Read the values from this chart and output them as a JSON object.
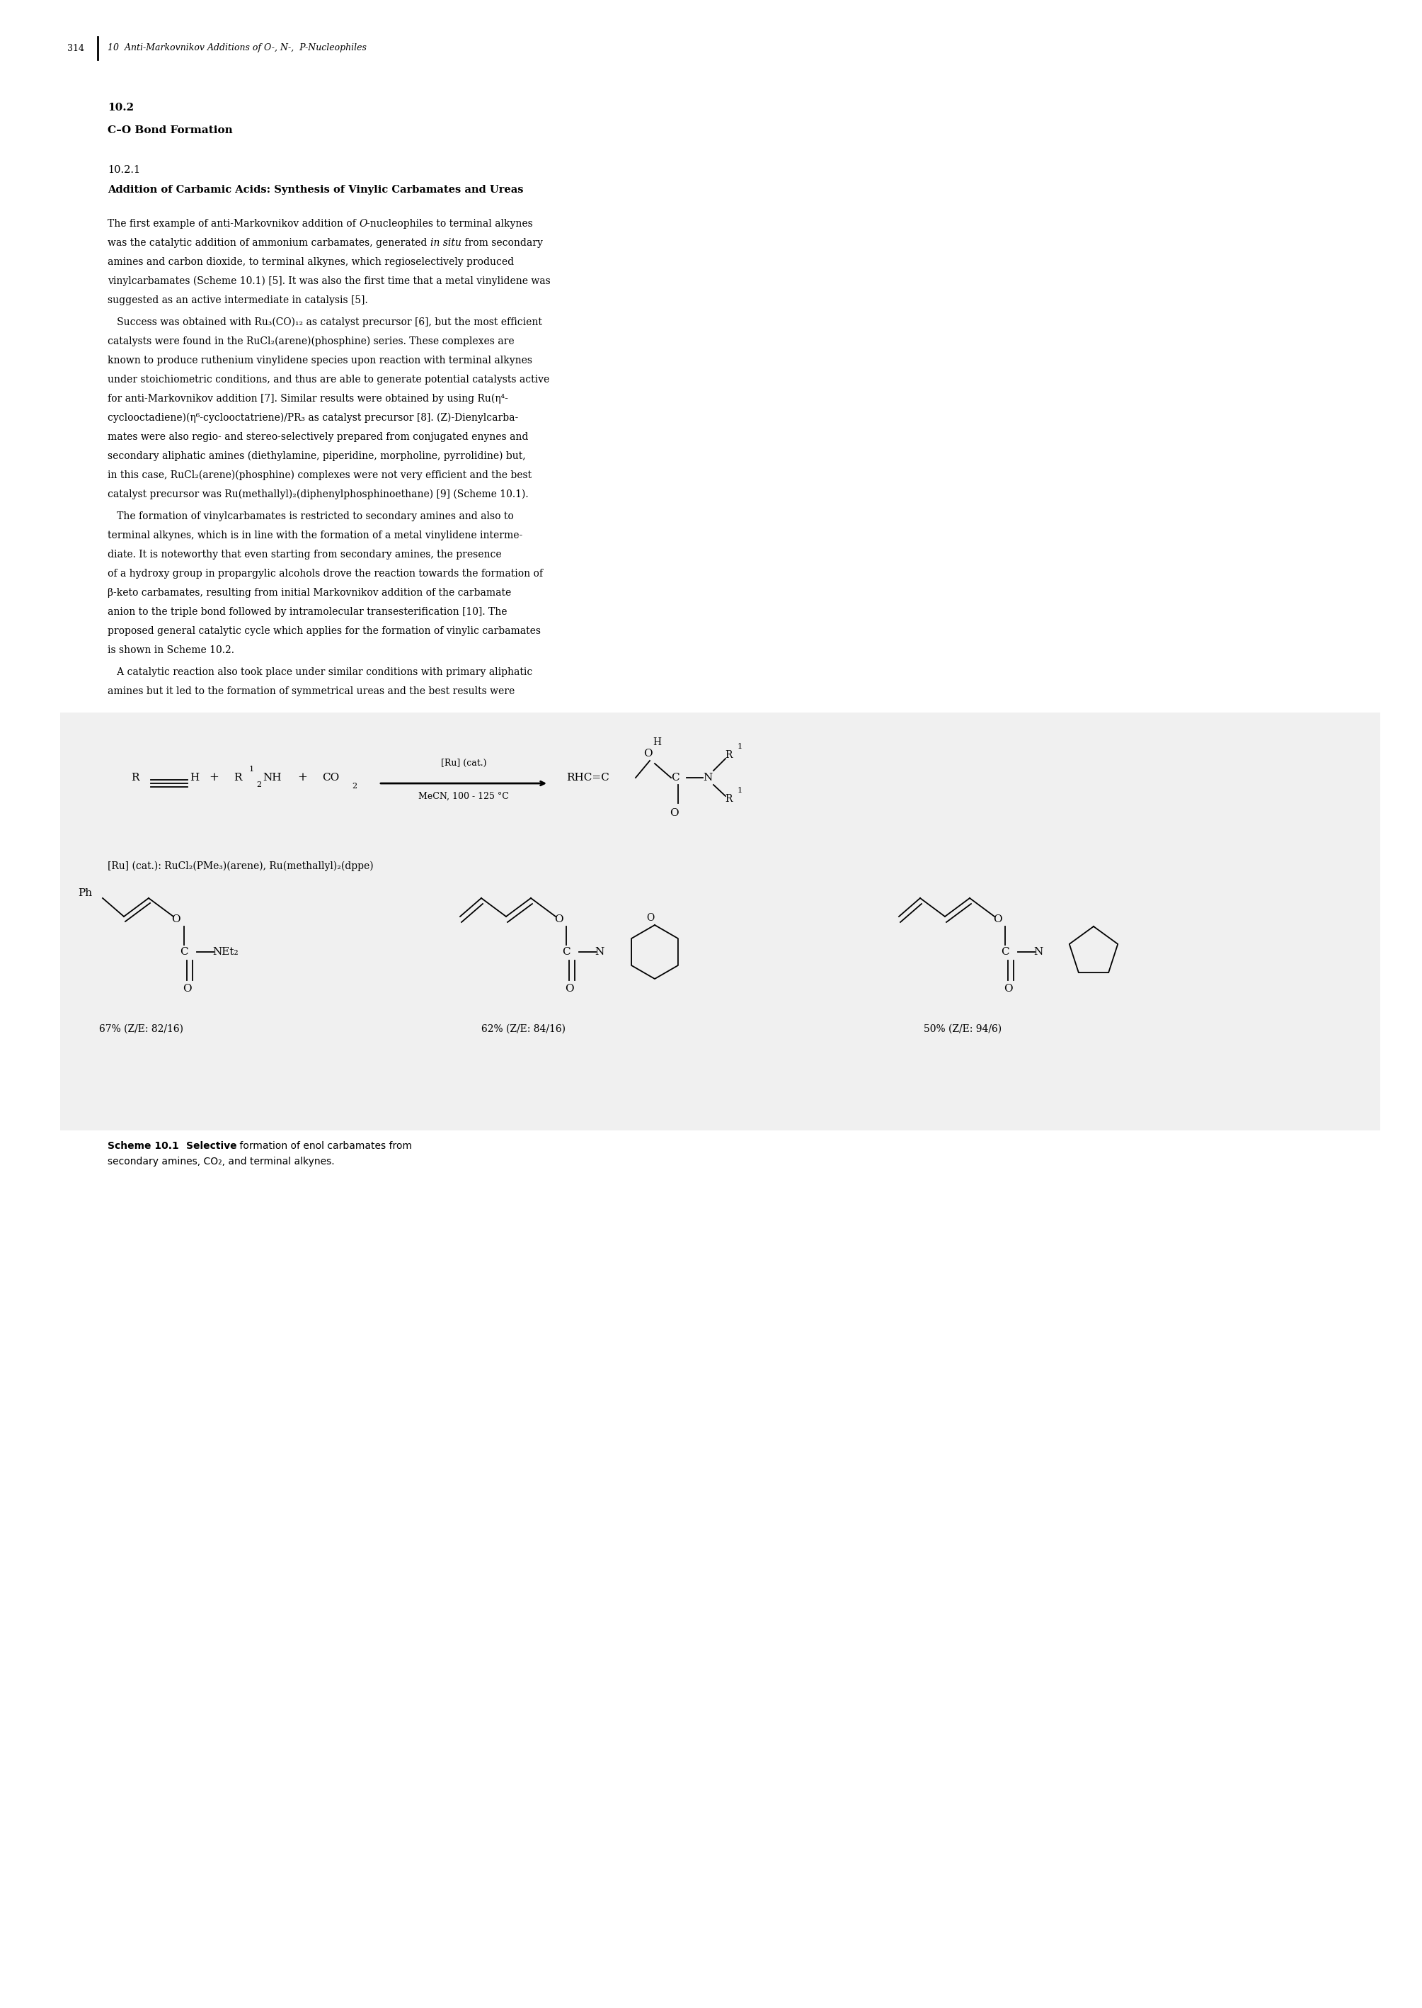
{
  "page_number": "314",
  "header_text": "10  Anti-Markovnikov Additions of O-, N-,  P-Nucleophiles",
  "section_number": "10.2",
  "section_title": "C–O Bond Formation",
  "subsection_number": "10.2.1",
  "subsection_title": "Addition of Carbamic Acids: Synthesis of Vinylic Carbamates and Ureas",
  "p1_line1": "The first example of anti-Markovnikov addition of ",
  "p1_line1_it": "O",
  "p1_line1b": "-nucleophiles to terminal alkynes",
  "p1_line2": "was the catalytic addition of ammonium carbamates, generated ",
  "p1_line2_it": "in situ",
  "p1_line2b": " from secondary",
  "p1_line3": "amines and carbon dioxide, to terminal alkynes, which regioselectively produced",
  "p1_line4": "vinylcarbamates (Scheme 10.1) [5]. It was also the first time that a metal vinylidene was",
  "p1_line5": "suggested as an active intermediate in catalysis [5].",
  "p2_indent": "   Success was obtained with Ru₃(CO)₁₂ as catalyst precursor [6], but the most efficient",
  "p2_l2": "catalysts were found in the RuCl₂(arene)(phosphine) series. These complexes are",
  "p2_l3": "known to produce ruthenium vinylidene species upon reaction with terminal alkynes",
  "p2_l4": "under stoichiometric conditions, and thus are able to generate potential catalysts active",
  "p2_l5a": "for anti-Markovnikov addition [7]. Similar results were obtained by using Ru(η⁴-",
  "p2_l6": "cyclooctadiene)(η⁶-cyclooctatriene)/PR₃ as catalyst precursor [8]. (Z)-Dienylcarba-",
  "p2_l7": "mates were also regio- and stereo-selectively prepared from conjugated enynes and",
  "p2_l8": "secondary aliphatic amines (diethylamine, piperidine, morpholine, pyrrolidine) but,",
  "p2_l9": "in this case, RuCl₂(arene)(phosphine) complexes were not very efficient and the best",
  "p2_l10": "catalyst precursor was Ru(methallyl)₂(diphenylphosphinoethane) [9] (Scheme 10.1).",
  "p3_indent": "   The formation of vinylcarbamates is restricted to secondary amines and also to",
  "p3_l2": "terminal alkynes, which is in line with the formation of a metal vinylidene interme-",
  "p3_l3": "diate. It is noteworthy that even starting from secondary amines, the presence",
  "p3_l4": "of a hydroxy group in propargylic alcohols drove the reaction towards the formation of",
  "p3_l5": "β-keto carbamates, resulting from initial Markovnikov addition of the carbamate",
  "p3_l6": "anion to the triple bond followed by intramolecular transesterification [10]. The",
  "p3_l7": "proposed general catalytic cycle which applies for the formation of vinylic carbamates",
  "p3_l8": "is shown in Scheme 10.2.",
  "p4_indent": "   A catalytic reaction also took place under similar conditions with primary aliphatic",
  "p4_l2": "amines but it led to the formation of symmetrical ureas and the best results were",
  "cat_line": "[Ru] (cat.): RuCl₂(PMe₃)(arene), Ru(methallyl)₂(dppe)",
  "yield1": "67% (Z/E: 82/16)",
  "yield2": "62% (Z/E: 84/16)",
  "yield3": "50% (Z/E: 94/6)",
  "cap_bold1": "Scheme 10.1",
  "cap_bold2": "Selective",
  "cap_rest": " formation of enol carbamates from",
  "cap_line2": "secondary amines, CO₂, and terminal alkynes.",
  "bg_color": "#ffffff"
}
